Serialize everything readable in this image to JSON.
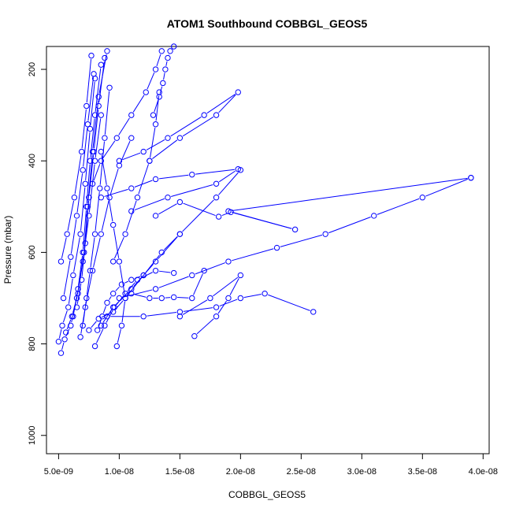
{
  "chart_data": {
    "type": "line",
    "title": "ATOM1 Southbound COBBGL_GEOS5",
    "xlabel": "COBBGL_GEOS5",
    "ylabel": "Pressure (mbar)",
    "xlim": [
      4e-09,
      4.05e-08
    ],
    "ylim": [
      1040,
      150
    ],
    "y_reversed": true,
    "grid": false,
    "legend": "none",
    "x_ticks": [
      {
        "value": 5e-09,
        "label": "5.0e-09"
      },
      {
        "value": 1e-08,
        "label": "1.0e-08"
      },
      {
        "value": 1.5e-08,
        "label": "1.5e-08"
      },
      {
        "value": 2e-08,
        "label": "2.0e-08"
      },
      {
        "value": 2.5e-08,
        "label": "2.5e-08"
      },
      {
        "value": 3e-08,
        "label": "3.0e-08"
      },
      {
        "value": 3.5e-08,
        "label": "3.5e-08"
      },
      {
        "value": 4e-08,
        "label": "4.0e-08"
      }
    ],
    "y_ticks": [
      {
        "value": 200,
        "label": "200"
      },
      {
        "value": 400,
        "label": "400"
      },
      {
        "value": 600,
        "label": "600"
      },
      {
        "value": 800,
        "label": "800"
      },
      {
        "value": 1000,
        "label": "1000"
      }
    ],
    "series": [
      {
        "x": [
          5.2e-09,
          5.5e-09,
          6e-09,
          6.5e-09,
          7e-09,
          7.5e-09,
          8e-09,
          8.5e-09
        ],
        "y": [
          820,
          790,
          760,
          700,
          620,
          520,
          400,
          300
        ]
      },
      {
        "x": [
          5e-09,
          5.3e-09,
          5.8e-09,
          6.2e-09,
          6.8e-09,
          7.2e-09,
          7.6e-09,
          8e-09
        ],
        "y": [
          795,
          760,
          720,
          650,
          560,
          450,
          330,
          220
        ]
      },
      {
        "x": [
          5.6e-09,
          6.1e-09,
          6.6e-09,
          7.1e-09,
          7.4e-09,
          7.8e-09,
          8.3e-09,
          9e-09
        ],
        "y": [
          775,
          740,
          690,
          600,
          500,
          380,
          260,
          160
        ]
      },
      {
        "x": [
          7.5e-09,
          8.3e-09,
          9.5e-09,
          1.05e-08,
          1.2e-08,
          1.35e-08,
          1.5e-08
        ],
        "y": [
          770,
          745,
          730,
          700,
          650,
          600,
          560
        ]
      },
      {
        "x": [
          8.5e-09,
          9.5e-09,
          1.1e-08,
          1.3e-08,
          1.5e-08,
          1.8e-08,
          2e-08
        ],
        "y": [
          760,
          720,
          680,
          620,
          560,
          480,
          420
        ]
      },
      {
        "x": [
          9e-09,
          1.2e-08,
          1.5e-08,
          1.8e-08,
          2e-08,
          2.2e-08,
          2.6e-08
        ],
        "y": [
          740,
          740,
          730,
          720,
          700,
          690,
          730
        ]
      },
      {
        "x": [
          1e-08,
          1.3e-08,
          1.6e-08,
          1.9e-08,
          2.3e-08,
          2.7e-08,
          3.1e-08,
          3.5e-08,
          3.9e-08
        ],
        "y": [
          700,
          680,
          650,
          620,
          590,
          560,
          520,
          480,
          437
        ]
      },
      {
        "x": [
          1.62e-08,
          1.8e-08,
          1.9e-08,
          2e-08,
          1.75e-08,
          1.5e-08
        ],
        "y": [
          783,
          740,
          700,
          650,
          700,
          740
        ]
      },
      {
        "x": [
          1.3e-08,
          1.5e-08,
          1.82e-08,
          1.92e-08,
          2.45e-08,
          1.9e-08,
          3.9e-08
        ],
        "y": [
          520,
          490,
          522,
          512,
          550,
          510,
          437
        ]
      },
      {
        "x": [
          1e-08,
          1.2e-08,
          1.4e-08,
          1.7e-08,
          1.98e-08,
          1.8e-08,
          1.5e-08,
          1.25e-08
        ],
        "y": [
          400,
          380,
          350,
          300,
          250,
          300,
          350,
          400
        ]
      },
      {
        "x": [
          8.5e-09,
          1.1e-08,
          1.3e-08,
          1.6e-08,
          1.98e-08,
          1.8e-08,
          1.4e-08,
          1.1e-08
        ],
        "y": [
          480,
          460,
          440,
          430,
          418,
          450,
          480,
          510
        ]
      },
      {
        "x": [
          1.28e-08,
          1.33e-08,
          1.36e-08,
          1.38e-08,
          1.4e-08,
          1.42e-08,
          1.45e-08
        ],
        "y": [
          300,
          260,
          230,
          200,
          175,
          160,
          150
        ]
      },
      {
        "x": [
          7.8e-09,
          8.5e-09,
          9.8e-09,
          1.1e-08,
          1.22e-08,
          1.3e-08,
          1.35e-08
        ],
        "y": [
          450,
          400,
          350,
          300,
          250,
          200,
          160
        ]
      },
      {
        "x": [
          9.5e-09,
          1.05e-08,
          1.15e-08,
          1.25e-08,
          1.3e-08,
          1.33e-08
        ],
        "y": [
          620,
          560,
          480,
          400,
          320,
          250
        ]
      },
      {
        "x": [
          7e-09,
          7.3e-09,
          7.6e-09,
          8e-09,
          8.4e-09,
          8.8e-09,
          9.2e-09
        ],
        "y": [
          760,
          700,
          640,
          560,
          460,
          350,
          240
        ]
      },
      {
        "x": [
          6.2e-09,
          6.6e-09,
          7e-09,
          7.3e-09,
          7.6e-09,
          8e-09,
          8.5e-09
        ],
        "y": [
          740,
          680,
          600,
          500,
          400,
          300,
          190
        ]
      },
      {
        "x": [
          8e-09,
          8.8e-09,
          9.6e-09,
          1.05e-08,
          1.15e-08,
          1.3e-08,
          1.45e-08
        ],
        "y": [
          805,
          760,
          720,
          690,
          660,
          640,
          645
        ]
      },
      {
        "x": [
          5.4e-09,
          6e-09,
          6.5e-09,
          7e-09,
          7.4e-09,
          7.9e-09
        ],
        "y": [
          700,
          610,
          520,
          420,
          320,
          210
        ]
      },
      {
        "x": [
          9.8e-09,
          1.02e-08,
          1.05e-08,
          1e-08,
          9.5e-09,
          9e-09,
          8.5e-09
        ],
        "y": [
          805,
          760,
          700,
          620,
          540,
          460,
          380
        ]
      },
      {
        "x": [
          6.8e-09,
          7.2e-09,
          7.8e-09,
          8.5e-09,
          9.2e-09,
          1e-08,
          1.1e-08
        ],
        "y": [
          785,
          720,
          640,
          560,
          480,
          410,
          350
        ]
      },
      {
        "x": [
          8.2e-09,
          8.6e-09,
          9e-09,
          9.5e-09,
          1.02e-08,
          1.1e-08,
          1.2e-08
        ],
        "y": [
          770,
          740,
          710,
          690,
          670,
          660,
          650
        ]
      },
      {
        "x": [
          1.1e-08,
          1.25e-08,
          1.35e-08,
          1.45e-08,
          1.6e-08,
          1.7e-08
        ],
        "y": [
          690,
          700,
          700,
          698,
          700,
          640
        ]
      },
      {
        "x": [
          5.2e-09,
          5.7e-09,
          6.3e-09,
          6.9e-09,
          7.3e-09,
          7.7e-09
        ],
        "y": [
          620,
          560,
          480,
          380,
          280,
          170
        ]
      },
      {
        "x": [
          6.5e-09,
          6.9e-09,
          7.2e-09,
          7.5e-09,
          7.9e-09,
          8.3e-09,
          8.8e-09
        ],
        "y": [
          720,
          660,
          580,
          480,
          380,
          280,
          175
        ]
      }
    ]
  }
}
